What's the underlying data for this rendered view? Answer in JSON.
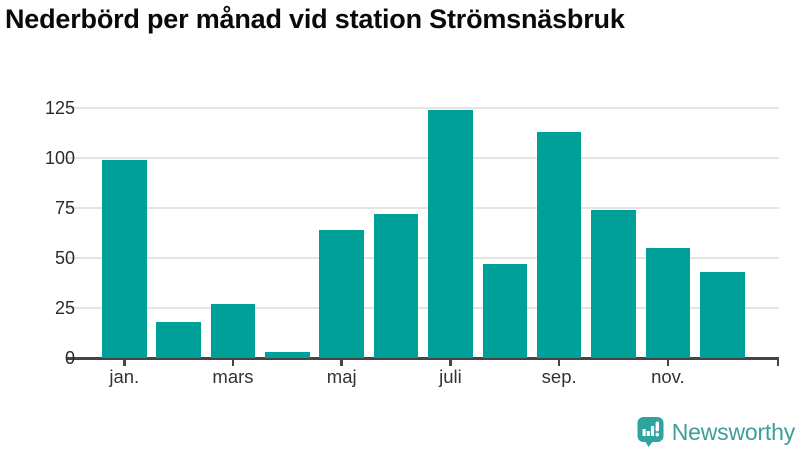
{
  "title": "Nederbörd per månad vid station Strömsnäsbruk",
  "branding": {
    "logo_text": "Newsworthy",
    "logo_text_color": "#3d9e9a",
    "logo_icon_color": "#2fa39d",
    "logo_icon": "speech-bubble-bar-chart-exclamation"
  },
  "chart_data": {
    "type": "bar",
    "title": "Nederbörd per månad vid station Strömsnäsbruk",
    "values": [
      99,
      18,
      27,
      3,
      64,
      72,
      124,
      47,
      113,
      74,
      55,
      43
    ],
    "x_ticks": [
      {
        "index": 0,
        "label": "jan."
      },
      {
        "index": 2,
        "label": "mars"
      },
      {
        "index": 4,
        "label": "maj"
      },
      {
        "index": 6,
        "label": "juli"
      },
      {
        "index": 8,
        "label": "sep."
      },
      {
        "index": 10,
        "label": "nov."
      }
    ],
    "y_ticks": [
      0,
      25,
      50,
      75,
      100,
      125
    ],
    "ylim": [
      0,
      125
    ],
    "grid": true,
    "legend": "none",
    "bar_color": "#00a099",
    "grid_color": "#e4e4e4",
    "axis_color": "#454545",
    "tick_label_color": "#333333",
    "title_color": "#0a0a0a"
  }
}
